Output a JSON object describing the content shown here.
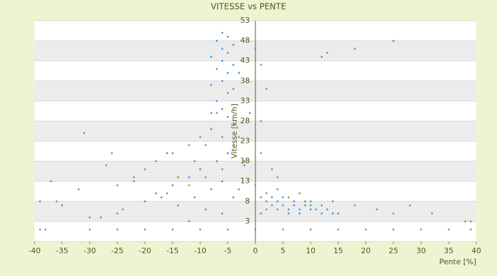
{
  "chart_data": {
    "type": "scatter",
    "title": "VITESSE vs PENTE",
    "x_label": "Pente [%]",
    "y_label": "Vitesse [km/h]",
    "xlim": [
      -40,
      40
    ],
    "xticks": [
      -40,
      -35,
      -30,
      -25,
      -20,
      -15,
      -10,
      -5,
      0,
      5,
      10,
      15,
      20,
      25,
      30,
      35,
      40
    ],
    "ylim": [
      -2,
      53
    ],
    "yticks": [
      53,
      48,
      43,
      38,
      33,
      28,
      23,
      18,
      13,
      8,
      3
    ],
    "series": [
      {
        "name": "blue",
        "color": "#3b8fd9",
        "x": [
          -6,
          -5,
          -7,
          -4,
          -6,
          -5,
          -8,
          -6,
          -4,
          -7,
          -5,
          -6,
          -8,
          -4,
          -5,
          -7,
          -6,
          -5,
          -4,
          -8,
          -6,
          -9,
          -5,
          -7,
          -10,
          -12,
          -6,
          -15,
          -8,
          -18,
          -11,
          -4,
          -20,
          -14,
          -9,
          -25,
          -6,
          -30,
          -12,
          -3,
          1,
          2,
          3,
          4,
          5,
          6,
          7,
          8,
          9,
          10,
          11,
          12,
          13,
          14,
          15,
          3,
          5,
          7,
          9,
          6,
          4,
          8,
          2,
          10,
          12,
          1,
          18,
          25,
          13,
          12,
          -38,
          -39,
          -2,
          -1,
          -3,
          -8,
          -16,
          -22,
          -35
        ],
        "values": [
          50,
          49,
          48,
          47,
          46,
          45,
          44,
          43,
          42,
          41,
          40,
          38,
          37,
          36,
          35,
          33,
          31,
          29,
          27,
          26,
          24,
          22,
          20,
          18,
          16,
          14,
          13,
          12,
          11,
          10,
          9,
          9,
          8,
          7,
          6,
          5,
          5,
          4,
          3,
          11,
          9,
          8,
          7,
          8,
          7,
          6,
          7,
          6,
          7,
          6,
          6,
          5,
          6,
          5,
          5,
          9,
          9,
          8,
          8,
          5,
          6,
          5,
          6,
          7,
          7,
          5,
          46,
          48,
          45,
          44,
          1,
          1,
          17,
          30,
          40,
          30,
          20,
          13,
          7
        ]
      },
      {
        "name": "olive",
        "color": "#8a9a1a",
        "x": [
          -8,
          -10,
          -12,
          -15,
          -18,
          -20,
          -22,
          -25,
          -27,
          -32,
          -37,
          -39,
          -30,
          -25,
          -20,
          -15,
          -10,
          -5,
          0,
          5,
          10,
          15,
          20,
          25,
          30,
          35,
          39,
          39,
          -3,
          -4,
          -2,
          -6,
          -9,
          -12,
          -16,
          -20,
          -24,
          -28,
          0,
          2,
          4,
          6,
          8,
          10,
          14,
          18,
          22,
          25,
          28,
          32,
          38,
          1,
          3,
          0,
          1,
          2,
          1,
          4,
          -7,
          -11,
          -14,
          -17,
          -31,
          -26,
          -36
        ],
        "values": [
          26,
          24,
          22,
          20,
          18,
          16,
          14,
          12,
          17,
          11,
          13,
          8,
          1,
          1,
          1,
          1,
          1,
          1,
          1,
          1,
          1,
          1,
          1,
          1,
          1,
          1,
          1,
          3,
          24,
          22,
          18,
          16,
          14,
          12,
          10,
          8,
          6,
          4,
          12,
          10,
          11,
          9,
          10,
          8,
          8,
          7,
          6,
          5,
          7,
          5,
          3,
          20,
          16,
          46,
          42,
          36,
          28,
          14,
          30,
          18,
          14,
          9,
          25,
          20,
          8
        ]
      }
    ]
  }
}
